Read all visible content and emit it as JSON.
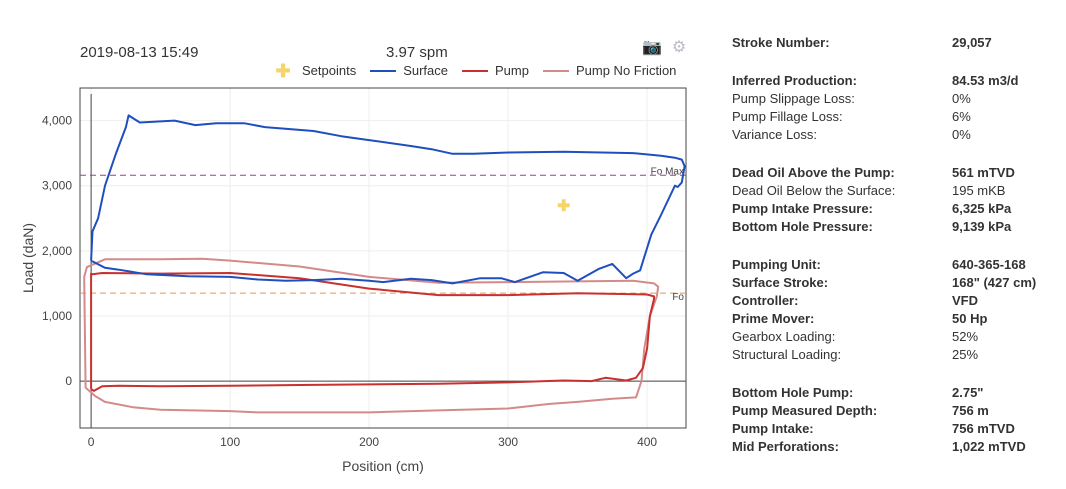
{
  "header": {
    "timestamp": "2019-08-13 15:49",
    "spm": "3.97 spm",
    "modebar": {
      "camera_icon": "camera-icon",
      "gear_icon": "gear-icon"
    }
  },
  "legend": {
    "setpoints": "Setpoints",
    "surface": "Surface",
    "pump": "Pump",
    "pump_no_friction": "Pump No Friction"
  },
  "colors": {
    "surface": "#1f4fbf",
    "pump": "#c8312f",
    "pump_no_friction": "#d48a8a",
    "setpoint": "#f5d56b",
    "fo_max_line": "#9a3fa0",
    "fo_line": "#e8955a"
  },
  "chart_data": {
    "type": "line",
    "xlabel": "Position (cm)",
    "ylabel": "Load (daN)",
    "xlim": [
      -8,
      428
    ],
    "ylim": [
      -720,
      4500
    ],
    "x_ticks": [
      0,
      100,
      200,
      300,
      400
    ],
    "y_ticks": [
      0,
      1000,
      2000,
      3000,
      4000
    ],
    "x_tick_labels": [
      "0",
      "100",
      "200",
      "300",
      "400"
    ],
    "y_tick_labels": [
      "0",
      "1,000",
      "2,000",
      "3,000",
      "4,000"
    ],
    "reference_lines": [
      {
        "name": "Fo Max",
        "value": 3160
      },
      {
        "name": "Fo",
        "value": 1350
      }
    ],
    "setpoints": [
      {
        "x": 340,
        "y": 2700
      }
    ],
    "series": [
      {
        "name": "Surface",
        "points": [
          [
            0,
            1850
          ],
          [
            1,
            2300
          ],
          [
            5,
            2500
          ],
          [
            10,
            3000
          ],
          [
            18,
            3500
          ],
          [
            25,
            3900
          ],
          [
            27,
            4080
          ],
          [
            35,
            3970
          ],
          [
            60,
            4000
          ],
          [
            75,
            3930
          ],
          [
            90,
            3960
          ],
          [
            110,
            3960
          ],
          [
            125,
            3900
          ],
          [
            160,
            3840
          ],
          [
            180,
            3760
          ],
          [
            200,
            3700
          ],
          [
            230,
            3610
          ],
          [
            245,
            3560
          ],
          [
            260,
            3490
          ],
          [
            275,
            3490
          ],
          [
            300,
            3510
          ],
          [
            340,
            3520
          ],
          [
            390,
            3500
          ],
          [
            410,
            3460
          ],
          [
            420,
            3430
          ],
          [
            425,
            3400
          ],
          [
            427,
            3300
          ],
          [
            425,
            3050
          ],
          [
            422,
            2980
          ],
          [
            420,
            3000
          ],
          [
            410,
            2550
          ],
          [
            403,
            2250
          ],
          [
            395,
            1700
          ],
          [
            390,
            1650
          ],
          [
            385,
            1580
          ],
          [
            375,
            1800
          ],
          [
            365,
            1720
          ],
          [
            350,
            1540
          ],
          [
            340,
            1660
          ],
          [
            325,
            1670
          ],
          [
            305,
            1520
          ],
          [
            295,
            1580
          ],
          [
            280,
            1580
          ],
          [
            260,
            1500
          ],
          [
            245,
            1550
          ],
          [
            230,
            1570
          ],
          [
            210,
            1520
          ],
          [
            200,
            1540
          ],
          [
            180,
            1570
          ],
          [
            160,
            1550
          ],
          [
            140,
            1540
          ],
          [
            120,
            1560
          ],
          [
            100,
            1600
          ],
          [
            70,
            1610
          ],
          [
            40,
            1640
          ],
          [
            20,
            1710
          ],
          [
            10,
            1740
          ],
          [
            0,
            1850
          ]
        ]
      },
      {
        "name": "Pump",
        "points": [
          [
            0,
            -120
          ],
          [
            0,
            1650
          ],
          [
            1,
            1640
          ],
          [
            8,
            1660
          ],
          [
            50,
            1650
          ],
          [
            100,
            1660
          ],
          [
            150,
            1580
          ],
          [
            200,
            1420
          ],
          [
            250,
            1320
          ],
          [
            300,
            1320
          ],
          [
            350,
            1350
          ],
          [
            400,
            1330
          ],
          [
            405,
            1300
          ],
          [
            405,
            1260
          ],
          [
            402,
            1000
          ],
          [
            400,
            500
          ],
          [
            397,
            200
          ],
          [
            392,
            50
          ],
          [
            385,
            10
          ],
          [
            370,
            50
          ],
          [
            360,
            0
          ],
          [
            340,
            10
          ],
          [
            300,
            -20
          ],
          [
            250,
            -40
          ],
          [
            200,
            -50
          ],
          [
            150,
            -60
          ],
          [
            100,
            -70
          ],
          [
            50,
            -80
          ],
          [
            20,
            -70
          ],
          [
            8,
            -80
          ],
          [
            2,
            -150
          ],
          [
            0,
            -120
          ]
        ]
      },
      {
        "name": "Pump No Friction",
        "points": [
          [
            -5,
            1600
          ],
          [
            -3,
            1750
          ],
          [
            10,
            1870
          ],
          [
            50,
            1870
          ],
          [
            80,
            1880
          ],
          [
            100,
            1850
          ],
          [
            150,
            1760
          ],
          [
            200,
            1600
          ],
          [
            250,
            1510
          ],
          [
            300,
            1520
          ],
          [
            350,
            1530
          ],
          [
            390,
            1540
          ],
          [
            405,
            1500
          ],
          [
            408,
            1450
          ],
          [
            407,
            1300
          ],
          [
            402,
            1000
          ],
          [
            398,
            500
          ],
          [
            396,
            0
          ],
          [
            392,
            -250
          ],
          [
            375,
            -270
          ],
          [
            350,
            -320
          ],
          [
            330,
            -350
          ],
          [
            300,
            -420
          ],
          [
            250,
            -450
          ],
          [
            200,
            -480
          ],
          [
            150,
            -480
          ],
          [
            120,
            -480
          ],
          [
            100,
            -460
          ],
          [
            50,
            -440
          ],
          [
            30,
            -400
          ],
          [
            10,
            -320
          ],
          [
            3,
            -230
          ],
          [
            -4,
            -100
          ],
          [
            -5,
            1600
          ]
        ]
      }
    ]
  },
  "info_rows": [
    {
      "label": "Stroke Number:",
      "value": "29,057",
      "bold": true
    },
    {
      "gap": true
    },
    {
      "label": "Inferred Production:",
      "value": "84.53 m3/d",
      "bold": true
    },
    {
      "label": "Pump Slippage Loss:",
      "value": "0%",
      "bold": false
    },
    {
      "label": "Pump Fillage Loss:",
      "value": "6%",
      "bold": false
    },
    {
      "label": "Variance Loss:",
      "value": "0%",
      "bold": false
    },
    {
      "gap": true
    },
    {
      "label": "Dead Oil Above the Pump:",
      "value": "561 mTVD",
      "bold": true
    },
    {
      "label": "Dead Oil Below the Surface:",
      "value": "195 mKB",
      "bold": false
    },
    {
      "label": "Pump Intake Pressure:",
      "value": "6,325 kPa",
      "bold": true
    },
    {
      "label": "Bottom Hole Pressure:",
      "value": "9,139 kPa",
      "bold": true
    },
    {
      "gap": true
    },
    {
      "label": "Pumping Unit:",
      "value": "640-365-168",
      "bold": true
    },
    {
      "label": "Surface Stroke:",
      "value": "168\" (427 cm)",
      "bold": true
    },
    {
      "label": "Controller:",
      "value": "VFD",
      "bold": true
    },
    {
      "label": "Prime Mover:",
      "value": "50 Hp",
      "bold": true
    },
    {
      "label": "Gearbox Loading:",
      "value": "52%",
      "bold": false
    },
    {
      "label": "Structural Loading:",
      "value": "25%",
      "bold": false
    },
    {
      "gap": true
    },
    {
      "label": "Bottom Hole Pump:",
      "value": "2.75\"",
      "bold": true
    },
    {
      "label": "Pump Measured Depth:",
      "value": "756 m",
      "bold": true
    },
    {
      "label": "Pump Intake:",
      "value": "756 mTVD",
      "bold": true
    },
    {
      "label": "Mid Perforations:",
      "value": "1,022 mTVD",
      "bold": true
    }
  ]
}
